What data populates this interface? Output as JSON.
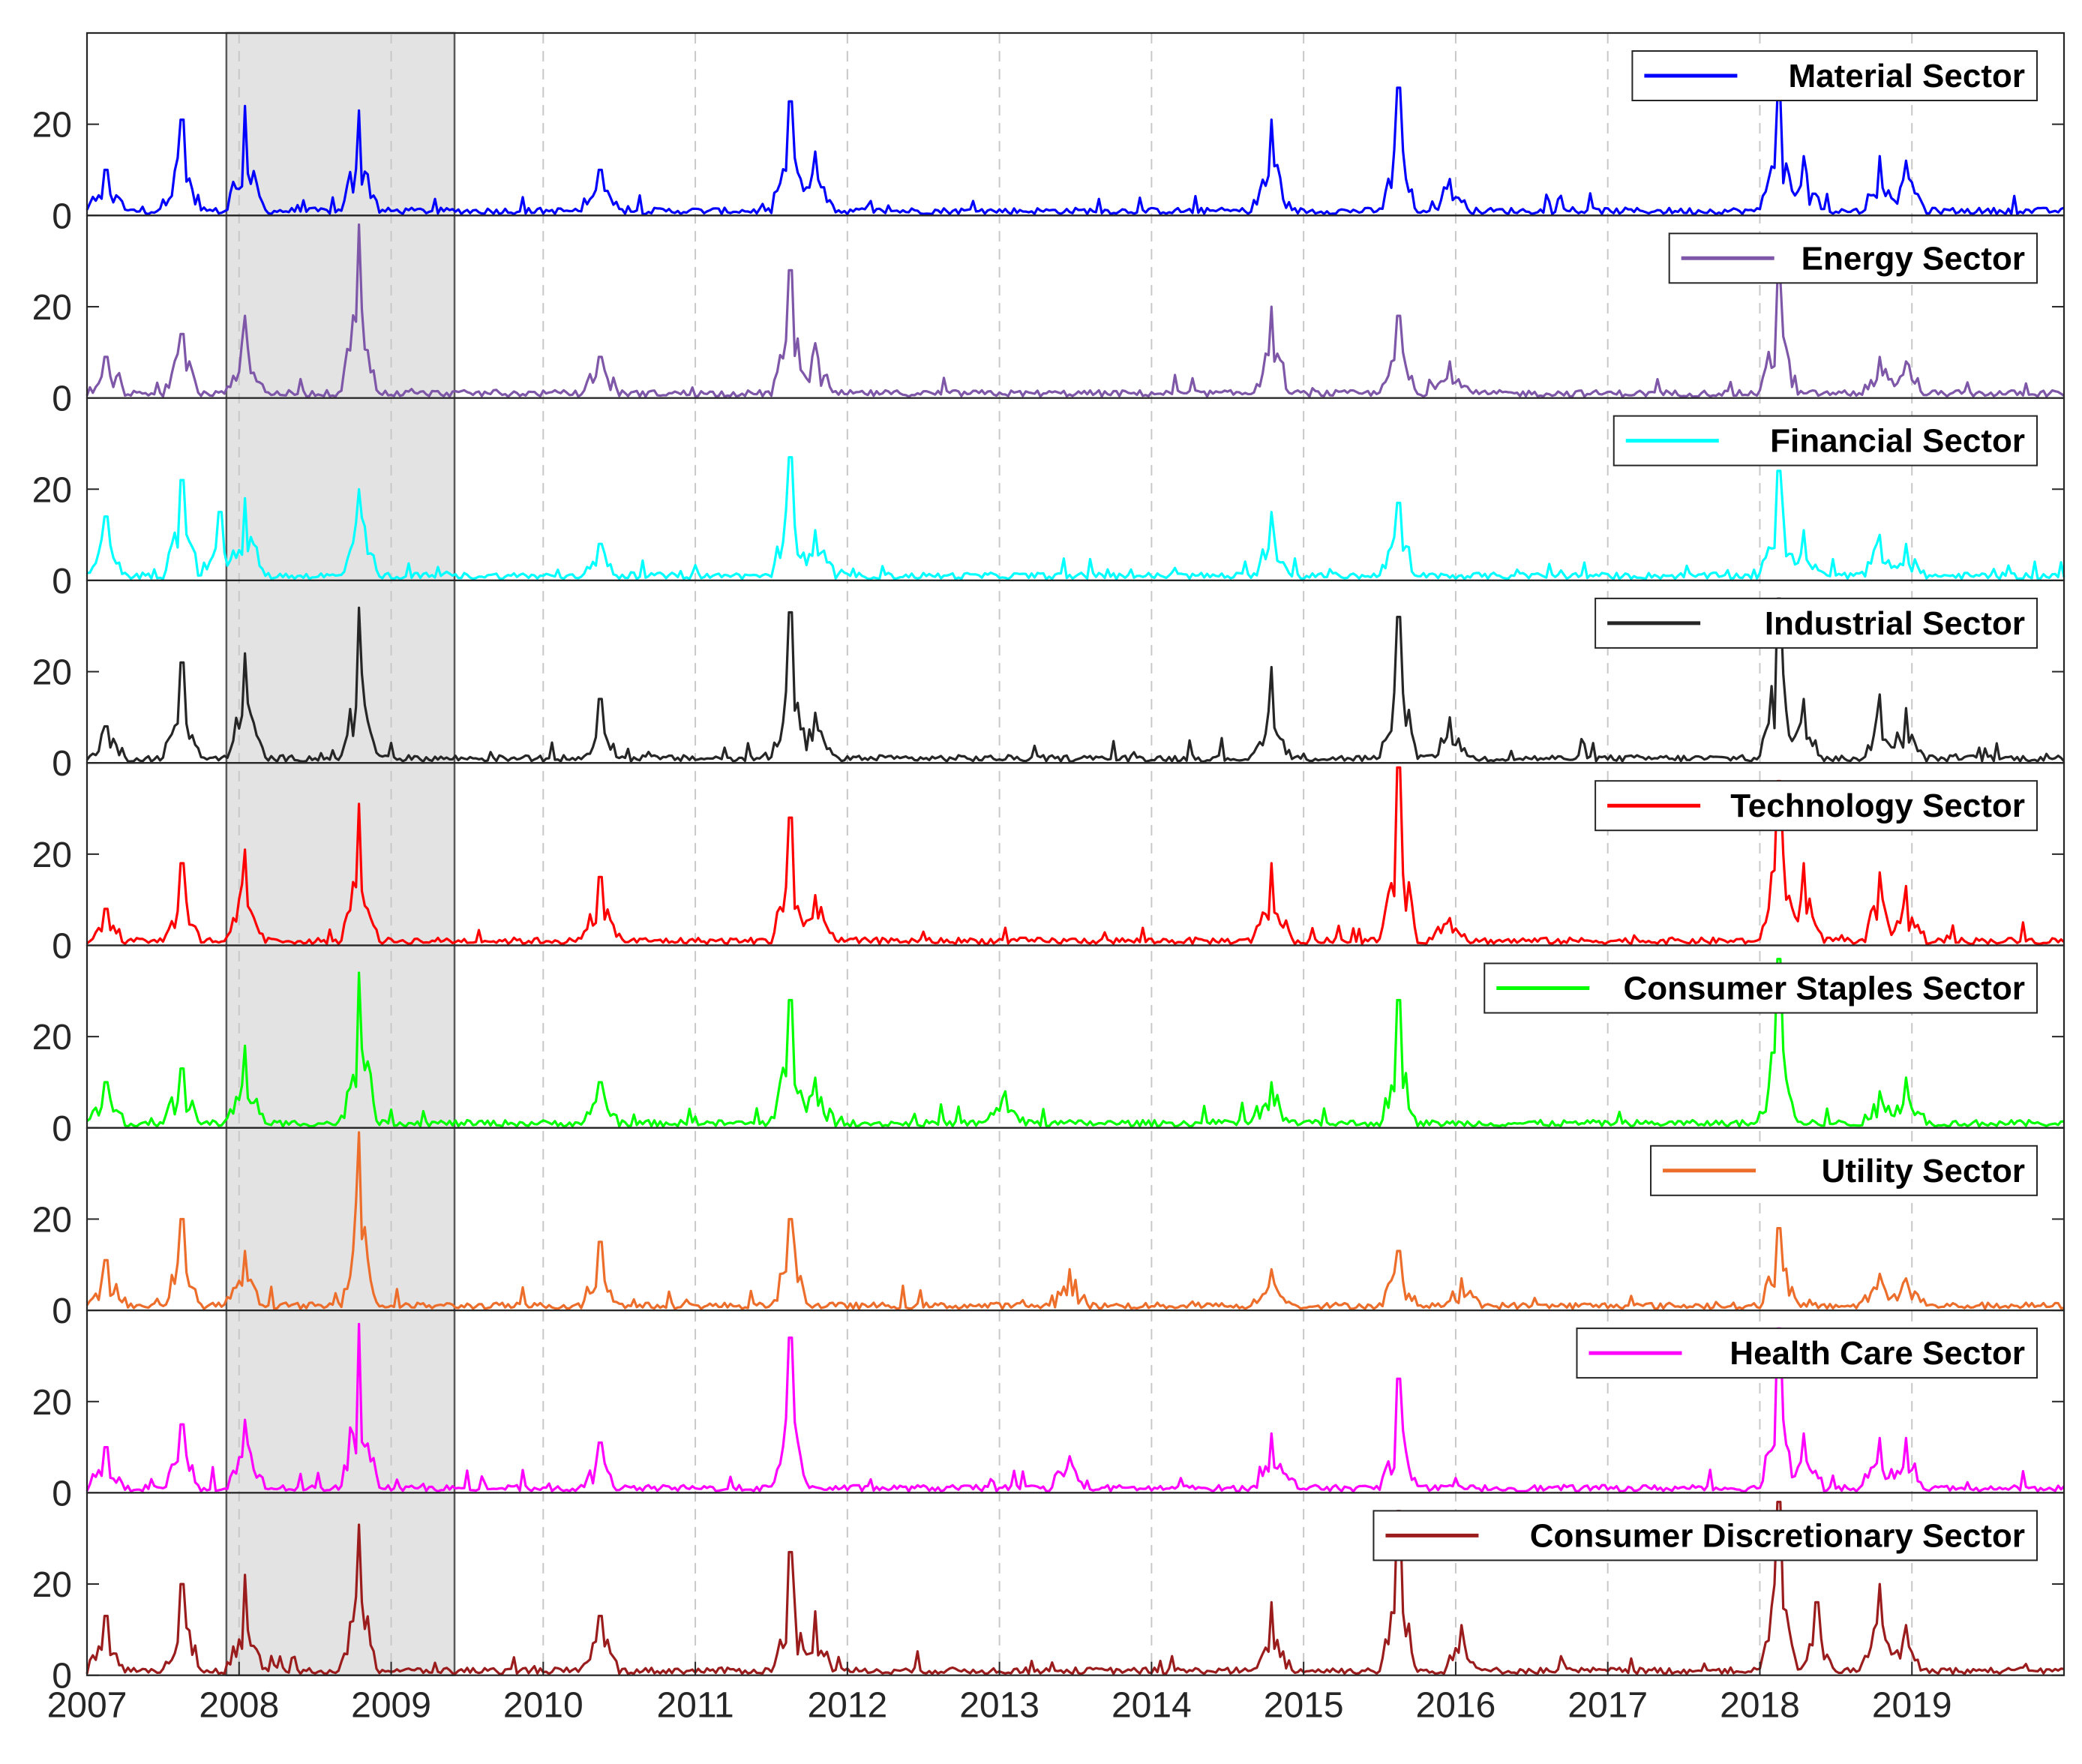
{
  "chart_data": {
    "type": "line",
    "x_start": "2007-01",
    "x_end": "2020-01",
    "x_ticks": [
      "2007",
      "2008",
      "2009",
      "2010",
      "2011",
      "2012",
      "2013",
      "2014",
      "2015",
      "2016",
      "2017",
      "2018",
      "2019"
    ],
    "y_ticks": [
      "0",
      "20"
    ],
    "ylim": [
      0,
      40
    ],
    "grid": "x dashed",
    "legend_position": "top-right of each panel",
    "shaded_period": {
      "start": "2007-12",
      "end": "2009-06"
    },
    "series": [
      {
        "name": "Material Sector",
        "color": "#0000ff",
        "peaks": [
          [
            "2007-02",
            10
          ],
          [
            "2007-08",
            21
          ],
          [
            "2008-01",
            24
          ],
          [
            "2008-10",
            23
          ],
          [
            "2010-05",
            10
          ],
          [
            "2011-08",
            25
          ],
          [
            "2011-10",
            14
          ],
          [
            "2014-10",
            21
          ],
          [
            "2015-08",
            28
          ],
          [
            "2015-12",
            8
          ],
          [
            "2018-02",
            26
          ],
          [
            "2018-04",
            13
          ],
          [
            "2018-10",
            13
          ],
          [
            "2018-12",
            12
          ]
        ]
      },
      {
        "name": "Energy Sector",
        "color": "#7e57a8",
        "peaks": [
          [
            "2007-02",
            9
          ],
          [
            "2007-08",
            14
          ],
          [
            "2008-01",
            18
          ],
          [
            "2008-10",
            38
          ],
          [
            "2010-05",
            9
          ],
          [
            "2011-08",
            28
          ],
          [
            "2011-10",
            12
          ],
          [
            "2014-10",
            20
          ],
          [
            "2015-08",
            18
          ],
          [
            "2015-12",
            8
          ],
          [
            "2018-02",
            26
          ],
          [
            "2018-10",
            9
          ],
          [
            "2018-12",
            8
          ]
        ]
      },
      {
        "name": "Financial Sector",
        "color": "#00ffff",
        "peaks": [
          [
            "2007-02",
            14
          ],
          [
            "2007-08",
            22
          ],
          [
            "2007-11",
            15
          ],
          [
            "2008-01",
            18
          ],
          [
            "2008-10",
            20
          ],
          [
            "2010-05",
            8
          ],
          [
            "2011-08",
            27
          ],
          [
            "2011-10",
            11
          ],
          [
            "2014-10",
            15
          ],
          [
            "2015-08",
            17
          ],
          [
            "2018-02",
            24
          ],
          [
            "2018-04",
            11
          ],
          [
            "2018-10",
            10
          ],
          [
            "2018-12",
            8
          ]
        ]
      },
      {
        "name": "Industrial Sector",
        "color": "#262626",
        "peaks": [
          [
            "2007-02",
            8
          ],
          [
            "2007-08",
            22
          ],
          [
            "2008-01",
            24
          ],
          [
            "2008-10",
            34
          ],
          [
            "2010-05",
            14
          ],
          [
            "2011-08",
            33
          ],
          [
            "2011-10",
            11
          ],
          [
            "2014-10",
            21
          ],
          [
            "2015-08",
            32
          ],
          [
            "2015-12",
            10
          ],
          [
            "2018-02",
            36
          ],
          [
            "2018-04",
            14
          ],
          [
            "2018-10",
            15
          ],
          [
            "2018-12",
            12
          ]
        ]
      },
      {
        "name": "Technology Sector",
        "color": "#ff0000",
        "peaks": [
          [
            "2007-02",
            8
          ],
          [
            "2007-08",
            18
          ],
          [
            "2008-01",
            21
          ],
          [
            "2008-10",
            31
          ],
          [
            "2010-05",
            15
          ],
          [
            "2011-08",
            28
          ],
          [
            "2011-10",
            11
          ],
          [
            "2014-10",
            18
          ],
          [
            "2015-08",
            39
          ],
          [
            "2015-12",
            6
          ],
          [
            "2018-02",
            36
          ],
          [
            "2018-04",
            18
          ],
          [
            "2018-10",
            16
          ],
          [
            "2018-12",
            13
          ]
        ]
      },
      {
        "name": "Consumer Staples Sector",
        "color": "#00ff00",
        "peaks": [
          [
            "2007-02",
            10
          ],
          [
            "2007-08",
            13
          ],
          [
            "2008-01",
            18
          ],
          [
            "2008-10",
            34
          ],
          [
            "2010-05",
            10
          ],
          [
            "2011-08",
            28
          ],
          [
            "2011-10",
            11
          ],
          [
            "2013-01",
            8
          ],
          [
            "2014-10",
            10
          ],
          [
            "2015-08",
            28
          ],
          [
            "2018-02",
            37
          ],
          [
            "2018-10",
            8
          ],
          [
            "2018-12",
            11
          ]
        ]
      },
      {
        "name": "Utility Sector",
        "color": "#ed6d2b",
        "peaks": [
          [
            "2007-02",
            11
          ],
          [
            "2007-08",
            20
          ],
          [
            "2008-01",
            13
          ],
          [
            "2008-10",
            39
          ],
          [
            "2010-05",
            15
          ],
          [
            "2011-08",
            20
          ],
          [
            "2013-06",
            9
          ],
          [
            "2014-10",
            9
          ],
          [
            "2015-08",
            13
          ],
          [
            "2016-01",
            7
          ],
          [
            "2018-02",
            18
          ],
          [
            "2018-10",
            8
          ],
          [
            "2018-12",
            7
          ]
        ]
      },
      {
        "name": "Health Care Sector",
        "color": "#ff00ff",
        "peaks": [
          [
            "2007-02",
            10
          ],
          [
            "2007-08",
            15
          ],
          [
            "2008-01",
            16
          ],
          [
            "2008-10",
            37
          ],
          [
            "2010-05",
            11
          ],
          [
            "2011-08",
            34
          ],
          [
            "2013-06",
            8
          ],
          [
            "2014-10",
            13
          ],
          [
            "2015-08",
            25
          ],
          [
            "2018-02",
            36
          ],
          [
            "2018-04",
            13
          ],
          [
            "2018-10",
            12
          ],
          [
            "2018-12",
            12
          ]
        ]
      },
      {
        "name": "Consumer Discretionary Sector",
        "color": "#9b1c1c",
        "peaks": [
          [
            "2007-02",
            13
          ],
          [
            "2007-08",
            20
          ],
          [
            "2008-01",
            22
          ],
          [
            "2008-10",
            33
          ],
          [
            "2010-05",
            13
          ],
          [
            "2011-08",
            27
          ],
          [
            "2011-10",
            14
          ],
          [
            "2014-10",
            16
          ],
          [
            "2015-08",
            36
          ],
          [
            "2016-01",
            11
          ],
          [
            "2018-02",
            38
          ],
          [
            "2018-05",
            16
          ],
          [
            "2018-10",
            20
          ],
          [
            "2018-12",
            11
          ]
        ]
      }
    ]
  }
}
